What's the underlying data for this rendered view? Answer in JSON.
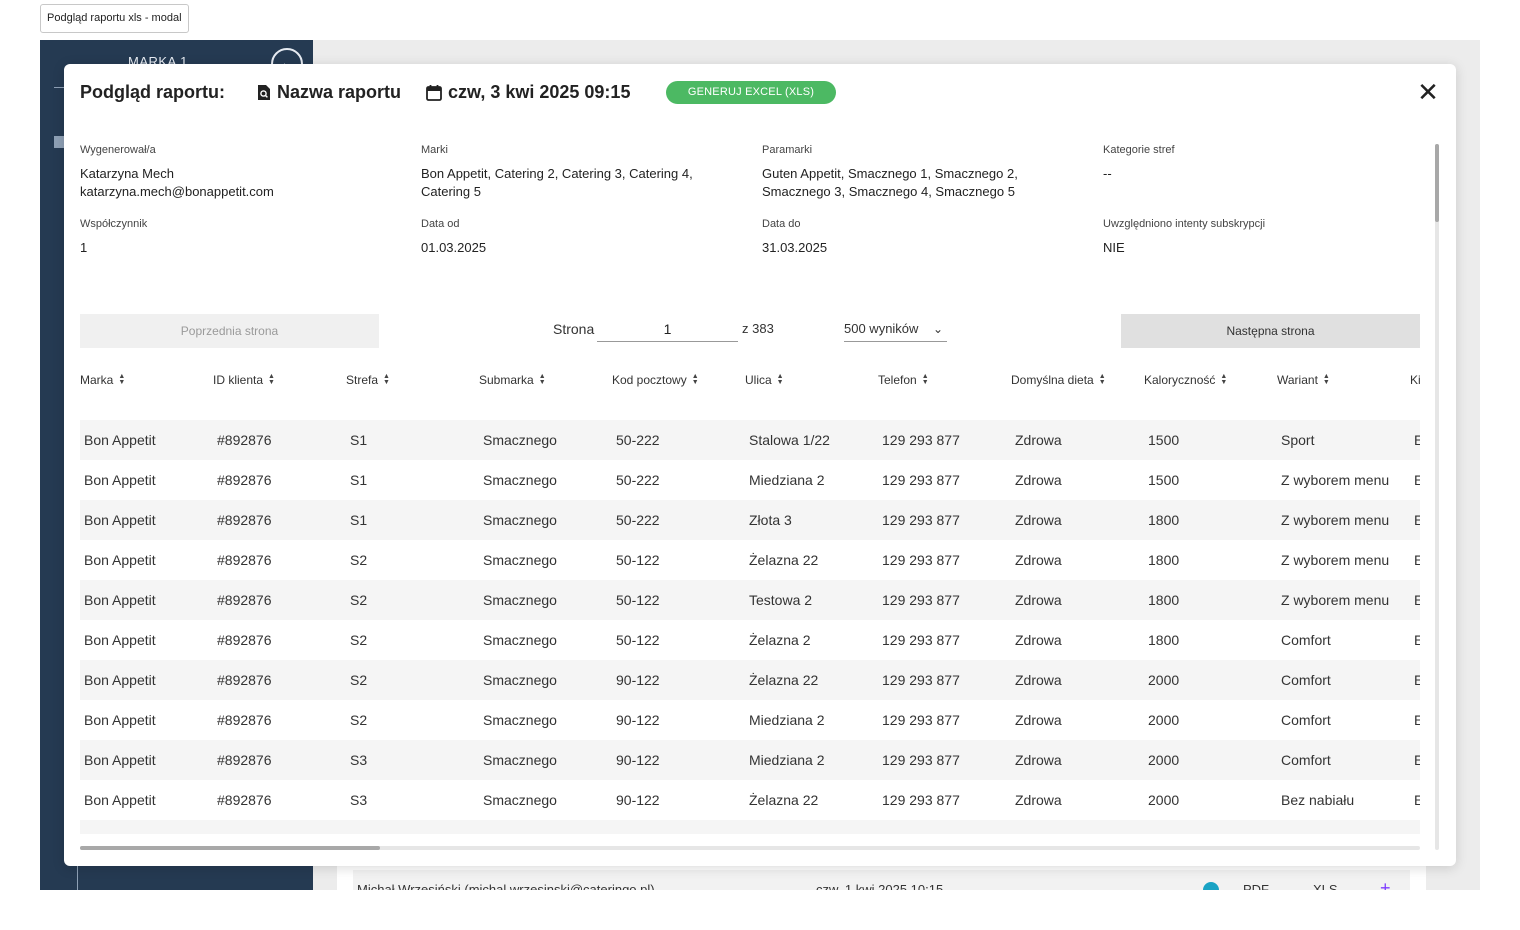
{
  "frame_label": "Podgląd raportu xls - modal",
  "sidebar": {
    "brand": "MARKA 1",
    "back_icon": "arrow-left-icon"
  },
  "background": {
    "row": {
      "user": "Michał Wrzesiński (michal.wrzesinski@cateringo.pl)",
      "date": "czw, 1 kwi 2025 10:15",
      "pdf": "PDF",
      "xls": "XLS"
    }
  },
  "modal": {
    "title": "Podgląd raportu:",
    "report_name": "Nazwa raportu",
    "report_icon": "search-document-icon",
    "date": "czw, 3 kwi 2025 09:15",
    "date_icon": "calendar-icon",
    "generate_button": "GENERUJ  EXCEL (XLS)",
    "close_icon": "close-icon",
    "meta": {
      "generated_by": {
        "label": "Wygenerował/a",
        "name": "Katarzyna Mech",
        "email": "katarzyna.mech@bonappetit.com"
      },
      "brands": {
        "label": "Marki",
        "value": "Bon Appetit, Catering 2, Catering 3, Catering 4, Catering 5"
      },
      "parabrands": {
        "label": "Paramarki",
        "value": "Guten Appetit, Smacznego 1,  Smacznego 2, Smacznego 3,  Smacznego 4, Smacznego 5"
      },
      "zone_categories": {
        "label": "Kategorie stref",
        "value": "--"
      },
      "coefficient": {
        "label": "Współczynnik",
        "value": "1"
      },
      "date_from": {
        "label": "Data od",
        "value": "01.03.2025"
      },
      "date_to": {
        "label": "Data do",
        "value": "31.03.2025"
      },
      "intents": {
        "label": "Uwzględniono intenty subskrypcji",
        "value": "NIE"
      }
    },
    "pagination": {
      "prev": "Poprzednia strona",
      "next": "Następna strona",
      "page_label": "Strona",
      "page_value": "1",
      "total": "z 383",
      "per_page": "500 wyników"
    },
    "table": {
      "columns": [
        "Marka",
        "ID klienta",
        "Strefa",
        "Submarka",
        "Kod pocztowy",
        "Ulica",
        "Telefon",
        "Domyślna dieta",
        "Kaloryczność",
        "Wariant",
        "Ki"
      ],
      "rows": [
        [
          "Bon Appetit",
          "#892876",
          "S1",
          "Smacznego",
          "50-222",
          "Stalowa 1/22",
          "129 293 877",
          "Zdrowa",
          "1500",
          "Sport",
          "E"
        ],
        [
          "Bon Appetit",
          "#892876",
          "S1",
          "Smacznego",
          "50-222",
          "Miedziana 2",
          "129 293 877",
          "Zdrowa",
          "1500",
          "Z wyborem menu",
          "E"
        ],
        [
          "Bon Appetit",
          "#892876",
          "S1",
          "Smacznego",
          "50-222",
          "Złota 3",
          "129 293 877",
          "Zdrowa",
          "1800",
          "Z wyborem menu",
          "E"
        ],
        [
          "Bon Appetit",
          "#892876",
          "S2",
          "Smacznego",
          "50-122",
          "Żelazna 22",
          "129 293 877",
          "Zdrowa",
          "1800",
          "Z wyborem menu",
          "E"
        ],
        [
          "Bon Appetit",
          "#892876",
          "S2",
          "Smacznego",
          "50-122",
          "Testowa 2",
          "129 293 877",
          "Zdrowa",
          "1800",
          "Z wyborem menu",
          "E"
        ],
        [
          "Bon Appetit",
          "#892876",
          "S2",
          "Smacznego",
          "50-122",
          "Żelazna 2",
          "129 293 877",
          "Zdrowa",
          "1800",
          "Comfort",
          "E"
        ],
        [
          "Bon Appetit",
          "#892876",
          "S2",
          "Smacznego",
          "90-122",
          "Żelazna 22",
          "129 293 877",
          "Zdrowa",
          "2000",
          "Comfort",
          "E"
        ],
        [
          "Bon Appetit",
          "#892876",
          "S2",
          "Smacznego",
          "90-122",
          "Miedziana 2",
          "129 293 877",
          "Zdrowa",
          "2000",
          "Comfort",
          "E"
        ],
        [
          "Bon Appetit",
          "#892876",
          "S3",
          "Smacznego",
          "90-122",
          "Miedziana 2",
          "129 293 877",
          "Zdrowa",
          "2000",
          "Comfort",
          "E"
        ],
        [
          "Bon Appetit",
          "#892876",
          "S3",
          "Smacznego",
          "90-122",
          "Żelazna 22",
          "129 293 877",
          "Zdrowa",
          "2000",
          "Bez nabiału",
          "E"
        ]
      ]
    }
  },
  "colors": {
    "sidebar": "#253a52",
    "accent_green": "#4cb963",
    "row_stripe": "#f5f5f5"
  }
}
